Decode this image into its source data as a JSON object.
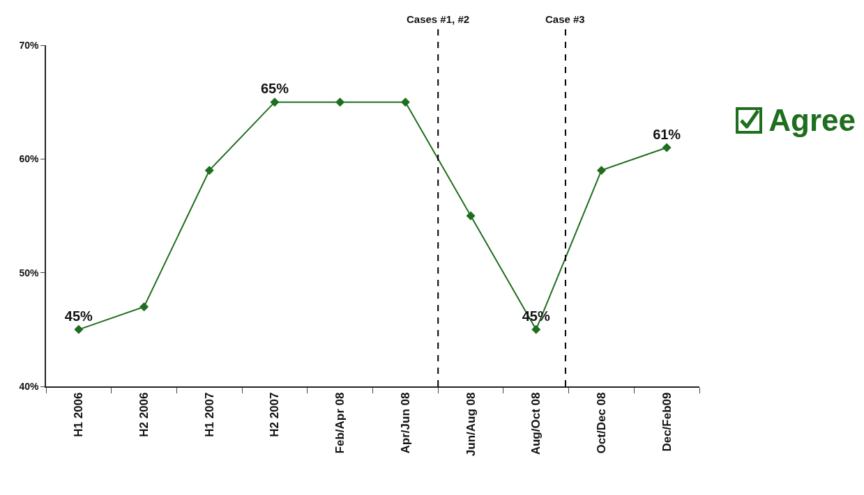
{
  "chart_data": {
    "type": "line",
    "categories": [
      "H1 2006",
      "H2 2006",
      "H1 2007",
      "H2 2007",
      "Feb/Apr 08",
      "Apr/Jun 08",
      "Jun/Aug 08",
      "Aug/Oct 08",
      "Oct/Dec 08",
      "Dec/Feb09"
    ],
    "series": [
      {
        "name": "Agree",
        "color": "#1e6e1e",
        "values": [
          45,
          47,
          59,
          65,
          65,
          65,
          55,
          45,
          59,
          61
        ],
        "value_labels": [
          "45%",
          null,
          null,
          "65%",
          null,
          null,
          null,
          "45%",
          null,
          "61%"
        ]
      }
    ],
    "ylim": [
      40,
      70
    ],
    "yticks": [
      {
        "value": 40,
        "label": "40%"
      },
      {
        "value": 50,
        "label": "50%"
      },
      {
        "value": 60,
        "label": "60%"
      },
      {
        "value": 70,
        "label": "70%"
      }
    ],
    "annotations": [
      "Cases #1, #2",
      "Case #3"
    ],
    "grid": false,
    "legend": "right",
    "marker": "diamond",
    "line_style": "solid"
  }
}
